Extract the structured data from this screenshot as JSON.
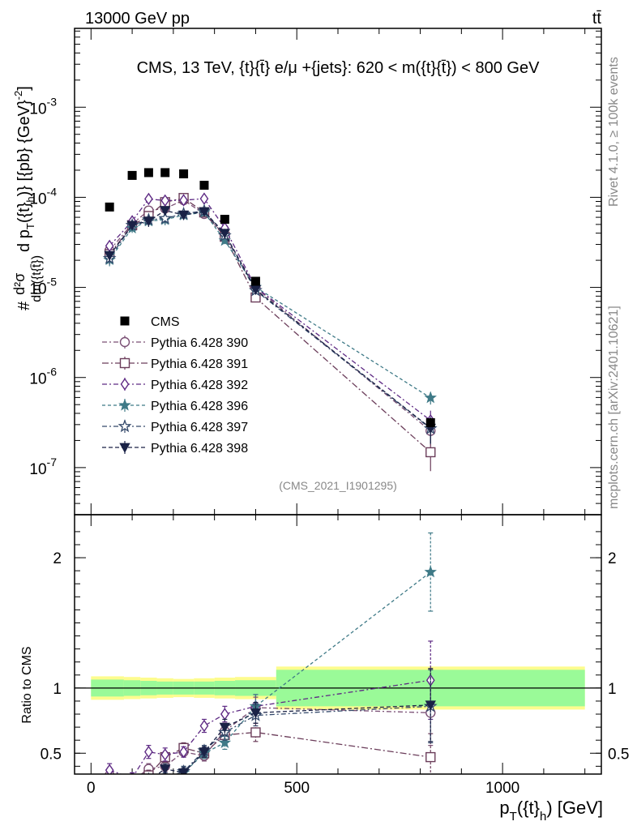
{
  "header": {
    "beam": "13000 GeV pp",
    "process": "tt̄"
  },
  "side": {
    "rivet": "Rivet 4.1.0, ≥ 100k events",
    "site": "mcplots.cern.ch [arXiv:2401.10621]"
  },
  "chart_data": {
    "type": "scatter",
    "title": "CMS, 13 TeV, {t}{t̄} e/μ +{jets}: 620 < m({t}{t̄}) < 800 GeV",
    "watermark": "(CMS_2021_I1901295)",
    "ylabel": "d²σ / dm({t}{t̄}) d p_T({t}_h) [{pb} {GeV}⁻²]",
    "ylabel_lines": [
      "#",
      "d²σ",
      "dm({t",
      "{t̄})",
      "d p",
      "T",
      "({t}",
      "h",
      ")} [{pb} {GeV}",
      "-2",
      "]"
    ],
    "xlabel_parts": [
      "p",
      "T",
      "({t}",
      "h",
      ") [GeV]"
    ],
    "ratio_ylabel": "Ratio to CMS",
    "xlim": [
      -40,
      1240
    ],
    "ylim": [
      3e-08,
      0.0075
    ],
    "ratio_ylim": [
      0.34,
      2.33
    ],
    "x_ticks": [
      "0",
      "500",
      "1000"
    ],
    "x_tick_values": [
      0,
      500,
      1000
    ],
    "y_ticks": [
      {
        "value": 1e-07,
        "exp": "-7"
      },
      {
        "value": 1e-06,
        "exp": "-6"
      },
      {
        "value": 1e-05,
        "exp": "-5"
      },
      {
        "value": 0.0001,
        "exp": "-4"
      },
      {
        "value": 0.001,
        "exp": "-3"
      }
    ],
    "ratio_ticks": [
      {
        "value": 0.5,
        "label": "0.5"
      },
      {
        "value": 1,
        "label": "1"
      },
      {
        "value": 2,
        "label": "2"
      }
    ],
    "x": [
      45,
      100,
      140,
      180,
      225,
      275,
      325,
      400,
      825
    ],
    "bin_edges": [
      0,
      80,
      120,
      160,
      200,
      250,
      300,
      350,
      450,
      1200
    ],
    "cms": {
      "name": "CMS",
      "values": [
        7.8e-05,
        0.000175,
        0.000188,
        0.000188,
        0.000182,
        0.000136,
        5.7e-05,
        1.17e-05,
        3.15e-07
      ],
      "band_green": [
        0.065,
        0.06,
        0.055,
        0.05,
        0.05,
        0.05,
        0.055,
        0.06,
        0.14
      ],
      "band_yellow": [
        0.09,
        0.085,
        0.08,
        0.075,
        0.07,
        0.075,
        0.08,
        0.085,
        0.165
      ]
    },
    "series": [
      {
        "name": "Pythia 6.428 390",
        "color": "#7a4f74",
        "marker": "circle-open",
        "dash": "6 3 2 3",
        "ratio": [
          0.33,
          0.29,
          0.38,
          0.4,
          0.51,
          0.48,
          0.67,
          0.85,
          0.81
        ],
        "ratio_err": [
          0.04,
          0.03,
          0.04,
          0.04,
          0.04,
          0.04,
          0.06,
          0.08,
          0.25
        ]
      },
      {
        "name": "Pythia 6.428 391",
        "color": "#6b3d5a",
        "marker": "square-open",
        "dash": "8 3 2 3",
        "ratio": [
          0.3,
          0.28,
          0.33,
          0.47,
          0.54,
          0.5,
          0.64,
          0.66,
          0.47
        ],
        "ratio_err": [
          0.04,
          0.03,
          0.04,
          0.04,
          0.04,
          0.04,
          0.06,
          0.07,
          0.18
        ]
      },
      {
        "name": "Pythia 6.428 392",
        "color": "#5e2a84",
        "marker": "diamond-open",
        "dash": "6 3 2 3",
        "ratio": [
          0.37,
          0.31,
          0.51,
          0.49,
          0.51,
          0.71,
          0.8,
          0.86,
          1.06
        ],
        "ratio_err": [
          0.05,
          0.04,
          0.05,
          0.05,
          0.04,
          0.05,
          0.06,
          0.09,
          0.3
        ]
      },
      {
        "name": "Pythia 6.428 396",
        "color": "#3f7a87",
        "marker": "star-filled",
        "dash": "4 3",
        "ratio": [
          0.26,
          0.26,
          0.29,
          0.3,
          0.35,
          0.5,
          0.58,
          0.86,
          1.89
        ],
        "ratio_err": [
          0.04,
          0.03,
          0.04,
          0.04,
          0.04,
          0.04,
          0.05,
          0.09,
          0.3
        ]
      },
      {
        "name": "Pythia 6.428 397",
        "color": "#34496b",
        "marker": "star-open",
        "dash": "6 3 2 3",
        "ratio": [
          0.27,
          0.28,
          0.3,
          0.31,
          0.36,
          0.52,
          0.66,
          0.79,
          0.86
        ],
        "ratio_err": [
          0.04,
          0.03,
          0.04,
          0.04,
          0.04,
          0.04,
          0.06,
          0.08,
          0.28
        ]
      },
      {
        "name": "Pythia 6.428 398",
        "color": "#1a2246",
        "marker": "triangle-down-filled",
        "dash": "5 3",
        "ratio": [
          0.29,
          0.28,
          0.29,
          0.38,
          0.35,
          0.51,
          0.7,
          0.81,
          0.87
        ],
        "ratio_err": [
          0.04,
          0.03,
          0.04,
          0.04,
          0.04,
          0.04,
          0.06,
          0.08,
          0.28
        ]
      }
    ]
  }
}
